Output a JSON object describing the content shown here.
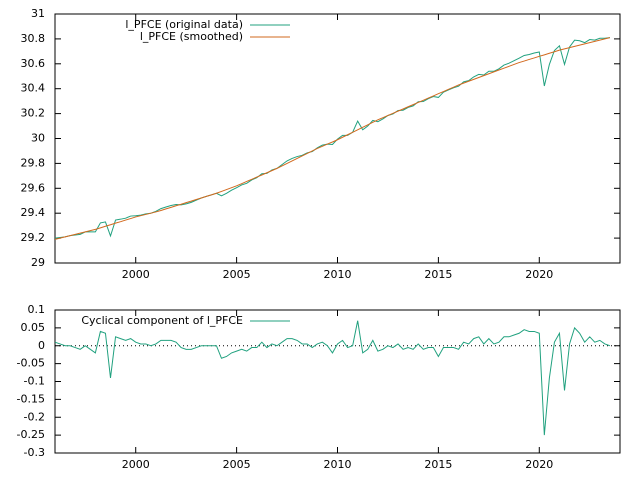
{
  "chart_data": [
    {
      "type": "line",
      "legend": "top-left",
      "xlim": [
        1996,
        2024
      ],
      "xticks": [
        2000,
        2005,
        2010,
        2015,
        2020
      ],
      "ylim": [
        29,
        31
      ],
      "yticks": [
        29,
        29.2,
        29.4,
        29.6,
        29.8,
        30,
        30.2,
        30.4,
        30.6,
        30.8,
        31
      ],
      "x": [
        1996,
        1996.25,
        1996.5,
        1996.75,
        1997,
        1997.25,
        1997.5,
        1997.75,
        1998,
        1998.25,
        1998.5,
        1998.75,
        1999,
        1999.25,
        1999.5,
        1999.75,
        2000,
        2000.25,
        2000.5,
        2000.75,
        2001,
        2001.25,
        2001.5,
        2001.75,
        2002,
        2002.25,
        2002.5,
        2002.75,
        2003,
        2003.25,
        2003.5,
        2003.75,
        2004,
        2004.25,
        2004.5,
        2004.75,
        2005,
        2005.25,
        2005.5,
        2005.75,
        2006,
        2006.25,
        2006.5,
        2006.75,
        2007,
        2007.25,
        2007.5,
        2007.75,
        2008,
        2008.25,
        2008.5,
        2008.75,
        2009,
        2009.25,
        2009.5,
        2009.75,
        2010,
        2010.25,
        2010.5,
        2010.75,
        2011,
        2011.25,
        2011.5,
        2011.75,
        2012,
        2012.25,
        2012.5,
        2012.75,
        2013,
        2013.25,
        2013.5,
        2013.75,
        2014,
        2014.25,
        2014.5,
        2014.75,
        2015,
        2015.25,
        2015.5,
        2015.75,
        2016,
        2016.25,
        2016.5,
        2016.75,
        2017,
        2017.25,
        2017.5,
        2017.75,
        2018,
        2018.25,
        2018.5,
        2018.75,
        2019,
        2019.25,
        2019.5,
        2019.75,
        2020,
        2020.25,
        2020.5,
        2020.75,
        2021,
        2021.25,
        2021.5,
        2021.75,
        2022,
        2022.25,
        2022.5,
        2022.75,
        2023,
        2023.25,
        2023.5
      ],
      "series": [
        {
          "name": "l_PFCE (original data)",
          "color": "#21a17f",
          "values": [
            29.2,
            29.205,
            29.21,
            29.22,
            29.225,
            29.23,
            29.25,
            29.25,
            29.25,
            29.322,
            29.33,
            29.217,
            29.345,
            29.352,
            29.36,
            29.377,
            29.38,
            29.385,
            29.395,
            29.4,
            29.415,
            29.437,
            29.45,
            29.462,
            29.47,
            29.467,
            29.475,
            29.487,
            29.505,
            29.522,
            29.535,
            29.547,
            29.56,
            29.54,
            29.56,
            29.585,
            29.605,
            29.627,
            29.64,
            29.667,
            29.685,
            29.717,
            29.72,
            29.747,
            29.76,
            29.79,
            29.82,
            29.84,
            29.855,
            29.865,
            29.885,
            29.895,
            29.925,
            29.947,
            29.955,
            29.952,
            29.995,
            30.025,
            30.025,
            30.05,
            30.14,
            30.07,
            30.1,
            30.145,
            30.135,
            30.157,
            30.185,
            30.197,
            30.225,
            30.227,
            30.25,
            30.262,
            30.295,
            30.297,
            30.32,
            30.337,
            30.33,
            30.372,
            30.39,
            30.407,
            30.42,
            30.455,
            30.465,
            30.495,
            30.515,
            30.51,
            30.54,
            30.54,
            30.56,
            30.59,
            30.605,
            30.625,
            30.645,
            30.667,
            30.675,
            30.687,
            30.695,
            30.422,
            30.595,
            30.707,
            30.745,
            30.595,
            30.735,
            30.79,
            30.785,
            30.77,
            30.795,
            30.79,
            30.805,
            30.805,
            30.81
          ]
        },
        {
          "name": "l_PFCE (smoothed)",
          "color": "#d2691e",
          "values": [
            29.19,
            29.2,
            29.21,
            29.22,
            29.23,
            29.24,
            29.25,
            29.26,
            29.27,
            29.282,
            29.295,
            29.307,
            29.32,
            29.332,
            29.345,
            29.357,
            29.37,
            29.38,
            29.39,
            29.4,
            29.41,
            29.422,
            29.435,
            29.447,
            29.46,
            29.472,
            29.485,
            29.497,
            29.51,
            29.522,
            29.535,
            29.547,
            29.56,
            29.575,
            29.59,
            29.605,
            29.62,
            29.637,
            29.655,
            29.672,
            29.69,
            29.707,
            29.725,
            29.742,
            29.76,
            29.78,
            29.8,
            29.82,
            29.84,
            29.86,
            29.88,
            29.9,
            29.92,
            29.937,
            29.955,
            29.972,
            29.99,
            30.01,
            30.03,
            30.05,
            30.07,
            30.09,
            30.11,
            30.13,
            30.15,
            30.167,
            30.185,
            30.202,
            30.22,
            30.237,
            30.255,
            30.272,
            30.29,
            30.307,
            30.325,
            30.342,
            30.36,
            30.377,
            30.395,
            30.412,
            30.43,
            30.445,
            30.46,
            30.475,
            30.49,
            30.505,
            30.52,
            30.535,
            30.55,
            30.565,
            30.58,
            30.595,
            30.61,
            30.622,
            30.635,
            30.647,
            30.66,
            30.672,
            30.685,
            30.697,
            30.71,
            30.72,
            30.73,
            30.74,
            30.75,
            30.76,
            30.77,
            30.78,
            30.79,
            30.8,
            30.81
          ]
        }
      ]
    },
    {
      "type": "line",
      "legend": "top-left",
      "zero_line": true,
      "xlim": [
        1996,
        2024
      ],
      "xticks": [
        2000,
        2005,
        2010,
        2015,
        2020
      ],
      "ylim": [
        -0.3,
        0.1
      ],
      "yticks": [
        0.1,
        0.05,
        0,
        -0.05,
        -0.1,
        -0.15,
        -0.2,
        -0.25,
        -0.3
      ],
      "x": [
        1996,
        1996.25,
        1996.5,
        1996.75,
        1997,
        1997.25,
        1997.5,
        1997.75,
        1998,
        1998.25,
        1998.5,
        1998.75,
        1999,
        1999.25,
        1999.5,
        1999.75,
        2000,
        2000.25,
        2000.5,
        2000.75,
        2001,
        2001.25,
        2001.5,
        2001.75,
        2002,
        2002.25,
        2002.5,
        2002.75,
        2003,
        2003.25,
        2003.5,
        2003.75,
        2004,
        2004.25,
        2004.5,
        2004.75,
        2005,
        2005.25,
        2005.5,
        2005.75,
        2006,
        2006.25,
        2006.5,
        2006.75,
        2007,
        2007.25,
        2007.5,
        2007.75,
        2008,
        2008.25,
        2008.5,
        2008.75,
        2009,
        2009.25,
        2009.5,
        2009.75,
        2010,
        2010.25,
        2010.5,
        2010.75,
        2011,
        2011.25,
        2011.5,
        2011.75,
        2012,
        2012.25,
        2012.5,
        2012.75,
        2013,
        2013.25,
        2013.5,
        2013.75,
        2014,
        2014.25,
        2014.5,
        2014.75,
        2015,
        2015.25,
        2015.5,
        2015.75,
        2016,
        2016.25,
        2016.5,
        2016.75,
        2017,
        2017.25,
        2017.5,
        2017.75,
        2018,
        2018.25,
        2018.5,
        2018.75,
        2019,
        2019.25,
        2019.5,
        2019.75,
        2020,
        2020.25,
        2020.5,
        2020.75,
        2021,
        2021.25,
        2021.5,
        2021.75,
        2022,
        2022.25,
        2022.5,
        2022.75,
        2023,
        2023.25,
        2023.5
      ],
      "series": [
        {
          "name": "Cyclical component of l_PFCE",
          "color": "#21a17f",
          "values": [
            0.01,
            0.005,
            0,
            0,
            -0.005,
            -0.01,
            0,
            -0.01,
            -0.02,
            0.04,
            0.035,
            -0.09,
            0.025,
            0.02,
            0.015,
            0.02,
            0.01,
            0.005,
            0.005,
            0,
            0.005,
            0.015,
            0.015,
            0.015,
            0.01,
            -0.005,
            -0.01,
            -0.01,
            -0.005,
            0,
            0,
            0,
            0,
            -0.035,
            -0.03,
            -0.02,
            -0.015,
            -0.01,
            -0.015,
            -0.005,
            -0.005,
            0.01,
            -0.005,
            0.005,
            0,
            0.01,
            0.02,
            0.02,
            0.015,
            0.005,
            0.005,
            -0.005,
            0.005,
            0.01,
            0,
            -0.02,
            0.005,
            0.015,
            -0.005,
            0,
            0.07,
            -0.02,
            -0.01,
            0.015,
            -0.015,
            -0.01,
            0,
            -0.005,
            0.005,
            -0.01,
            -0.005,
            -0.01,
            0.005,
            -0.01,
            -0.005,
            -0.005,
            -0.03,
            -0.005,
            -0.005,
            -0.005,
            -0.01,
            0.01,
            0.005,
            0.02,
            0.025,
            0.005,
            0.02,
            0.005,
            0.01,
            0.025,
            0.025,
            0.03,
            0.035,
            0.045,
            0.04,
            0.04,
            0.035,
            -0.25,
            -0.09,
            0.01,
            0.035,
            -0.125,
            0.005,
            0.05,
            0.035,
            0.01,
            0.025,
            0.01,
            0.015,
            0.005,
            0
          ]
        }
      ]
    }
  ]
}
